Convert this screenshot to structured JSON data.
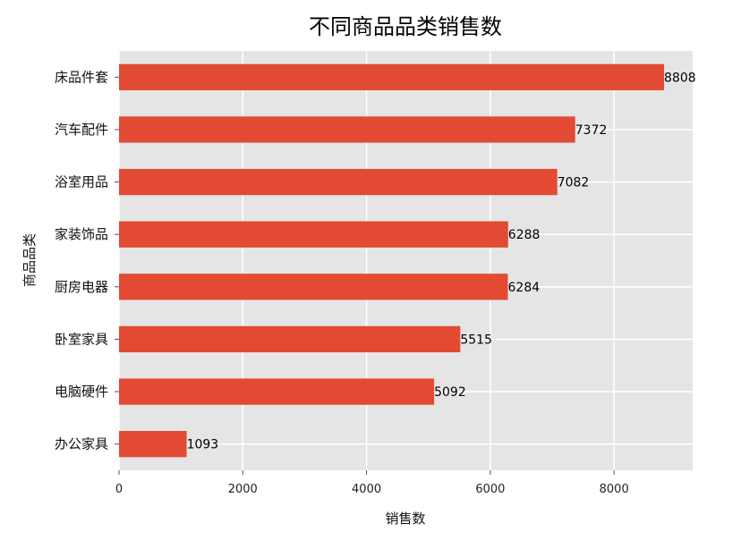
{
  "chart_data": {
    "type": "bar",
    "orientation": "horizontal",
    "title": "不同商品品类销售数",
    "xlabel": "销售数",
    "ylabel": "商品品类",
    "categories": [
      "床品件套",
      "汽车配件",
      "浴室用品",
      "家装饰品",
      "厨房电器",
      "卧室家具",
      "电脑硬件",
      "办公家具"
    ],
    "values": [
      8808,
      7372,
      7082,
      6288,
      6284,
      5515,
      5092,
      1093
    ],
    "xlim": [
      0,
      9270
    ],
    "xticks": [
      0,
      2000,
      4000,
      6000,
      8000
    ],
    "grid": true,
    "bar_color": "#E24A33",
    "background_color": "#E5E5E5",
    "grid_color": "#FFFFFF"
  }
}
